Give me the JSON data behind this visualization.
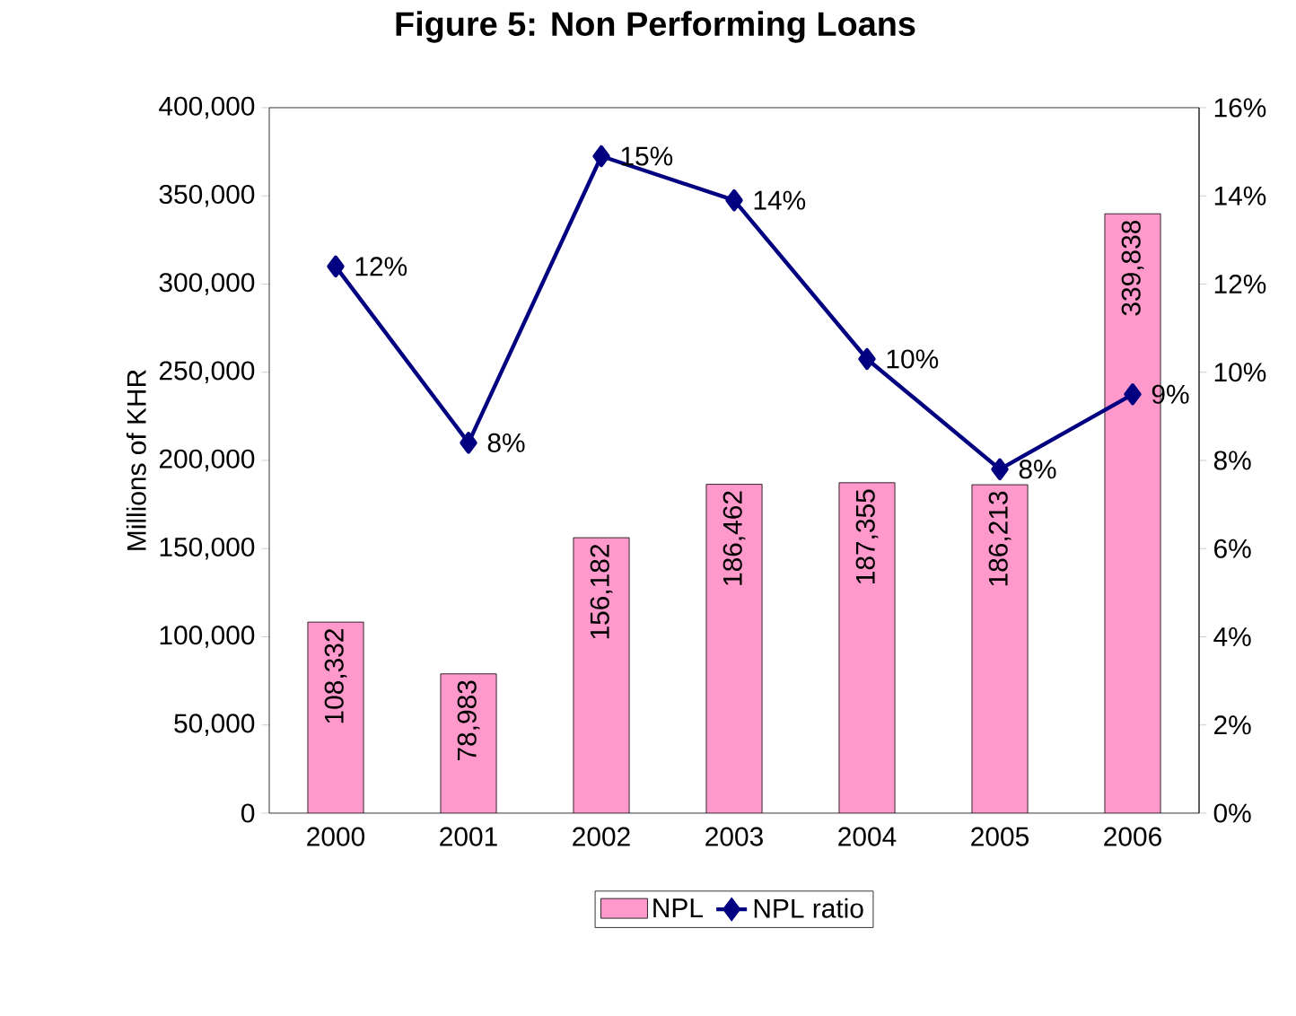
{
  "chart_data": {
    "type": "bar",
    "title": "Figure 5: Non Performing Loans",
    "ylabel": "Millions of KHR",
    "categories": [
      "2000",
      "2001",
      "2002",
      "2003",
      "2004",
      "2005",
      "2006"
    ],
    "series": [
      {
        "name": "NPL",
        "color": "#ff99cc",
        "values": [
          108332,
          78983,
          156182,
          186462,
          187355,
          186213,
          339838
        ],
        "value_labels": [
          "108,332",
          "78,983",
          "156,182",
          "186,462",
          "187,355",
          "186,213",
          "339,838"
        ]
      },
      {
        "name": "NPL ratio",
        "type": "line",
        "axis": "y2",
        "color": "#000080",
        "values": [
          12.4,
          8.4,
          14.9,
          13.9,
          10.3,
          7.8,
          9.5
        ],
        "value_labels": [
          "12%",
          "8%",
          "15%",
          "14%",
          "10%",
          "8%",
          "9%"
        ]
      }
    ],
    "ylim": [
      0,
      400000
    ],
    "yticks": [
      0,
      {
        "value": 50000,
        "label": "50,000"
      },
      {
        "value": 100000,
        "label": "100,000"
      },
      {
        "value": 150000,
        "label": "150,000"
      },
      {
        "value": 200000,
        "label": "200,000"
      },
      {
        "value": 250000,
        "label": "250,000"
      },
      {
        "value": 300000,
        "label": "300,000"
      },
      {
        "value": 350000,
        "label": "350,000"
      },
      {
        "value": 400000,
        "label": "400,000"
      }
    ],
    "y2lim": [
      0,
      16
    ],
    "y2ticks": [
      {
        "value": 0,
        "label": "0%"
      },
      {
        "value": 2,
        "label": "2%"
      },
      {
        "value": 4,
        "label": "4%"
      },
      {
        "value": 6,
        "label": "6%"
      },
      {
        "value": 8,
        "label": "8%"
      },
      {
        "value": 10,
        "label": "10%"
      },
      {
        "value": 12,
        "label": "12%"
      },
      {
        "value": 14,
        "label": "14%"
      },
      {
        "value": 16,
        "label": "16%"
      }
    ],
    "marker": "diamond",
    "legend": "bottom",
    "grid": false
  }
}
